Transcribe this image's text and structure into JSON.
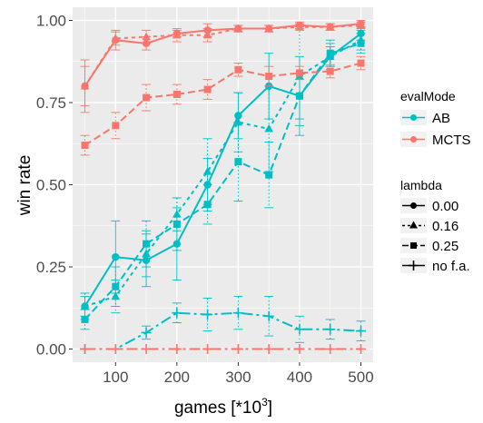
{
  "chart_data": {
    "type": "line",
    "xlabel_main": "games [*10",
    "xlabel_sup": "3",
    "xlabel_end": "]",
    "ylabel": "win rate",
    "x_ticks": [
      100,
      200,
      300,
      400,
      500
    ],
    "y_ticks": [
      0.0,
      0.25,
      0.5,
      0.75,
      1.0
    ],
    "y_tick_labels": [
      "0.00",
      "0.25",
      "0.50",
      "0.75",
      "1.00"
    ],
    "xlim": [
      30,
      520
    ],
    "ylim": [
      -0.04,
      1.04
    ],
    "grid": true,
    "legend_position": "right",
    "colors": {
      "AB": "#00BFC4",
      "MCTS": "#F8766D",
      "panel": "#EBEBEB",
      "grid": "#ffffff"
    },
    "legend": {
      "color_title": "evalMode",
      "color_entries": [
        "AB",
        "MCTS"
      ],
      "lambda_title": "lambda",
      "lambda_entries": [
        "0.00",
        "0.16",
        "0.25",
        "no f.a."
      ]
    },
    "series": [
      {
        "mode": "AB",
        "lambda": "0.00",
        "x": [
          50,
          100,
          150,
          200,
          250,
          300,
          350,
          400,
          450,
          500
        ],
        "y": [
          0.13,
          0.28,
          0.27,
          0.32,
          0.5,
          0.71,
          0.8,
          0.77,
          0.89,
          0.96
        ],
        "err": [
          0.03,
          0.11,
          0.08,
          0.11,
          0.08,
          0.07,
          0.1,
          0.12,
          0.03,
          0.02
        ]
      },
      {
        "mode": "AB",
        "lambda": "0.16",
        "x": [
          50,
          100,
          150,
          200,
          250,
          300,
          350,
          400,
          450,
          500
        ],
        "y": [
          0.13,
          0.16,
          0.29,
          0.41,
          0.54,
          0.69,
          0.67,
          0.83,
          0.89,
          0.94
        ],
        "err": [
          0.04,
          0.05,
          0.07,
          0.05,
          0.1,
          0.09,
          0.13,
          0.15,
          0.04,
          0.03
        ]
      },
      {
        "mode": "AB",
        "lambda": "0.25",
        "x": [
          50,
          100,
          150,
          200,
          250,
          300,
          350,
          400,
          450,
          500
        ],
        "y": [
          0.09,
          0.19,
          0.32,
          0.38,
          0.44,
          0.57,
          0.53,
          0.77,
          0.9,
          0.93
        ],
        "err": [
          0.03,
          0.06,
          0.07,
          0.08,
          0.06,
          0.12,
          0.1,
          0.07,
          0.04,
          0.03
        ]
      },
      {
        "mode": "AB",
        "lambda": "no f.a.",
        "x": [
          50,
          100,
          150,
          200,
          250,
          300,
          350,
          400,
          450,
          500
        ],
        "y": [
          0.0,
          0.0,
          0.05,
          0.11,
          0.105,
          0.11,
          0.1,
          0.06,
          0.06,
          0.055
        ],
        "err": [
          0.0,
          0.0,
          0.02,
          0.03,
          0.05,
          0.05,
          0.06,
          0.04,
          0.03,
          0.03
        ]
      },
      {
        "mode": "MCTS",
        "lambda": "0.00",
        "x": [
          50,
          100,
          150,
          200,
          250,
          300,
          350,
          400,
          450,
          500
        ],
        "y": [
          0.8,
          0.94,
          0.93,
          0.96,
          0.97,
          0.975,
          0.975,
          0.985,
          0.98,
          0.99
        ],
        "err": [
          0.08,
          0.03,
          0.02,
          0.01,
          0.02,
          0.01,
          0.01,
          0.01,
          0.01,
          0.01
        ]
      },
      {
        "mode": "MCTS",
        "lambda": "0.16",
        "x": [
          50,
          100,
          150,
          200,
          250,
          300,
          350,
          400,
          450,
          500
        ],
        "y": [
          0.8,
          0.945,
          0.95,
          0.955,
          0.955,
          0.975,
          0.975,
          0.98,
          0.98,
          0.985
        ],
        "err": [
          0.06,
          0.02,
          0.02,
          0.02,
          0.02,
          0.01,
          0.01,
          0.01,
          0.01,
          0.01
        ]
      },
      {
        "mode": "MCTS",
        "lambda": "0.25",
        "x": [
          50,
          100,
          150,
          200,
          250,
          300,
          350,
          400,
          450,
          500
        ],
        "y": [
          0.62,
          0.68,
          0.765,
          0.775,
          0.79,
          0.85,
          0.83,
          0.84,
          0.845,
          0.87
        ],
        "err": [
          0.03,
          0.04,
          0.04,
          0.03,
          0.03,
          0.02,
          0.03,
          0.02,
          0.02,
          0.02
        ]
      },
      {
        "mode": "MCTS",
        "lambda": "no f.a.",
        "x": [
          50,
          100,
          150,
          200,
          250,
          300,
          350,
          400,
          450,
          500
        ],
        "y": [
          0.0,
          0.0,
          0.0,
          0.0,
          0.0,
          0.0,
          0.0,
          0.0,
          0.0,
          0.0
        ],
        "err": [
          0,
          0,
          0,
          0,
          0,
          0,
          0,
          0,
          0,
          0
        ]
      }
    ]
  }
}
